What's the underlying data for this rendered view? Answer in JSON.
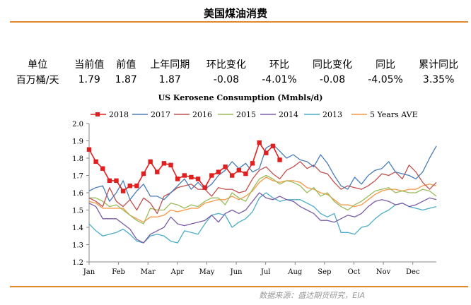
{
  "page": {
    "title": "美国煤油消费",
    "source": "数据来源：盛达期货研究，EIA"
  },
  "stats": {
    "headers": [
      "单位",
      "当前值",
      "前值",
      "上年同期",
      "环比变化",
      "环比",
      "同比变化",
      "同比",
      "累计同比"
    ],
    "values": [
      "百万桶/天",
      "1.79",
      "1.87",
      "1.87",
      "-0.08",
      "-4.01%",
      "-0.08",
      "-4.05%",
      "3.35%"
    ]
  },
  "colors": {
    "accent": "#e0892c",
    "s2018": "#e01f1f",
    "s2017": "#4a7db6",
    "s2016": "#c0504d",
    "s2015": "#9bbb59",
    "s2014": "#7b5ca5",
    "s2013": "#4bacc6",
    "s5y": "#f79646"
  },
  "chart_data": {
    "type": "line",
    "title": "US Kerosene Consumption (Mmbls/d)",
    "xlabel": "",
    "ylabel": "",
    "ylim": [
      1.2,
      2.0
    ],
    "yticks": [
      "1.2",
      "1.3",
      "1.4",
      "1.5",
      "1.6",
      "1.7",
      "1.8",
      "1.9",
      "2.0"
    ],
    "xticks": [
      "Jan",
      "Feb",
      "Mar",
      "Apr",
      "May",
      "Jun",
      "Jul",
      "Aug",
      "Sep",
      "Oct",
      "Nov",
      "Dec"
    ],
    "weeks": 52,
    "legend": "top",
    "series": [
      {
        "name": "2018",
        "color": "#e01f1f",
        "marker": "square",
        "values": [
          1.85,
          1.78,
          1.74,
          1.67,
          1.67,
          1.61,
          1.64,
          1.64,
          1.71,
          1.78,
          1.72,
          1.77,
          1.76,
          1.68,
          1.7,
          1.69,
          1.68,
          1.63,
          1.7,
          1.72,
          1.75,
          1.7,
          1.73,
          1.71,
          1.77,
          1.89,
          1.83,
          1.87,
          1.79
        ]
      },
      {
        "name": "2017",
        "color": "#4a7db6",
        "values": [
          1.61,
          1.63,
          1.64,
          1.55,
          1.6,
          1.67,
          1.56,
          1.61,
          1.65,
          1.58,
          1.58,
          1.56,
          1.6,
          1.64,
          1.68,
          1.62,
          1.66,
          1.62,
          1.65,
          1.7,
          1.73,
          1.78,
          1.74,
          1.77,
          1.72,
          1.74,
          1.86,
          1.88,
          1.84,
          1.8,
          1.82,
          1.79,
          1.78,
          1.75,
          1.82,
          1.77,
          1.7,
          1.64,
          1.62,
          1.69,
          1.65,
          1.7,
          1.73,
          1.74,
          1.78,
          1.72,
          1.71,
          1.7,
          1.68,
          1.72,
          1.8,
          1.87
        ]
      },
      {
        "name": "2016",
        "color": "#c0504d",
        "values": [
          1.57,
          1.55,
          1.52,
          1.63,
          1.55,
          1.52,
          1.56,
          1.5,
          1.57,
          1.54,
          1.48,
          1.58,
          1.6,
          1.63,
          1.64,
          1.65,
          1.62,
          1.62,
          1.58,
          1.63,
          1.62,
          1.62,
          1.6,
          1.61,
          1.68,
          1.73,
          1.75,
          1.71,
          1.68,
          1.73,
          1.75,
          1.78,
          1.74,
          1.76,
          1.72,
          1.71,
          1.66,
          1.62,
          1.64,
          1.63,
          1.62,
          1.64,
          1.67,
          1.71,
          1.7,
          1.72,
          1.68,
          1.76,
          1.72,
          1.66,
          1.62,
          1.66
        ]
      },
      {
        "name": "2015",
        "color": "#9bbb59",
        "values": [
          1.57,
          1.57,
          1.55,
          1.52,
          1.53,
          1.5,
          1.47,
          1.44,
          1.42,
          1.51,
          1.5,
          1.5,
          1.54,
          1.53,
          1.51,
          1.53,
          1.52,
          1.55,
          1.57,
          1.57,
          1.53,
          1.6,
          1.57,
          1.55,
          1.62,
          1.68,
          1.7,
          1.68,
          1.65,
          1.67,
          1.66,
          1.64,
          1.6,
          1.63,
          1.58,
          1.6,
          1.55,
          1.52,
          1.5,
          1.53,
          1.55,
          1.58,
          1.61,
          1.62,
          1.63,
          1.6,
          1.61,
          1.6,
          1.6,
          1.62,
          1.61,
          1.58
        ]
      },
      {
        "name": "2014",
        "color": "#7b5ca5",
        "values": [
          1.54,
          1.52,
          1.45,
          1.45,
          1.45,
          1.42,
          1.39,
          1.33,
          1.31,
          1.36,
          1.38,
          1.4,
          1.46,
          1.42,
          1.41,
          1.42,
          1.43,
          1.44,
          1.47,
          1.43,
          1.48,
          1.5,
          1.48,
          1.5,
          1.55,
          1.6,
          1.57,
          1.56,
          1.58,
          1.56,
          1.55,
          1.52,
          1.5,
          1.48,
          1.44,
          1.44,
          1.43,
          1.45,
          1.47,
          1.46,
          1.48,
          1.52,
          1.55,
          1.56,
          1.55,
          1.53,
          1.54,
          1.52,
          1.53,
          1.55,
          1.57,
          1.56
        ]
      },
      {
        "name": "2013",
        "color": "#4bacc6",
        "values": [
          1.42,
          1.38,
          1.35,
          1.36,
          1.37,
          1.39,
          1.36,
          1.32,
          1.31,
          1.35,
          1.36,
          1.35,
          1.32,
          1.31,
          1.38,
          1.37,
          1.36,
          1.42,
          1.47,
          1.48,
          1.47,
          1.4,
          1.43,
          1.45,
          1.49,
          1.57,
          1.6,
          1.57,
          1.55,
          1.56,
          1.56,
          1.56,
          1.54,
          1.52,
          1.48,
          1.46,
          1.48,
          1.37,
          1.37,
          1.36,
          1.4,
          1.41,
          1.45,
          1.48,
          1.5,
          1.53,
          1.54,
          1.52,
          1.51,
          1.5,
          1.51,
          1.52
        ]
      },
      {
        "name": "5 Years AVE",
        "color": "#f79646",
        "values": [
          1.55,
          1.54,
          1.51,
          1.51,
          1.51,
          1.51,
          1.47,
          1.45,
          1.43,
          1.46,
          1.46,
          1.47,
          1.5,
          1.49,
          1.5,
          1.51,
          1.51,
          1.54,
          1.55,
          1.56,
          1.56,
          1.58,
          1.56,
          1.58,
          1.61,
          1.66,
          1.69,
          1.67,
          1.66,
          1.67,
          1.67,
          1.66,
          1.63,
          1.62,
          1.6,
          1.59,
          1.56,
          1.53,
          1.53,
          1.52,
          1.53,
          1.56,
          1.59,
          1.61,
          1.62,
          1.62,
          1.61,
          1.62,
          1.62,
          1.64,
          1.65,
          1.64
        ]
      }
    ]
  }
}
